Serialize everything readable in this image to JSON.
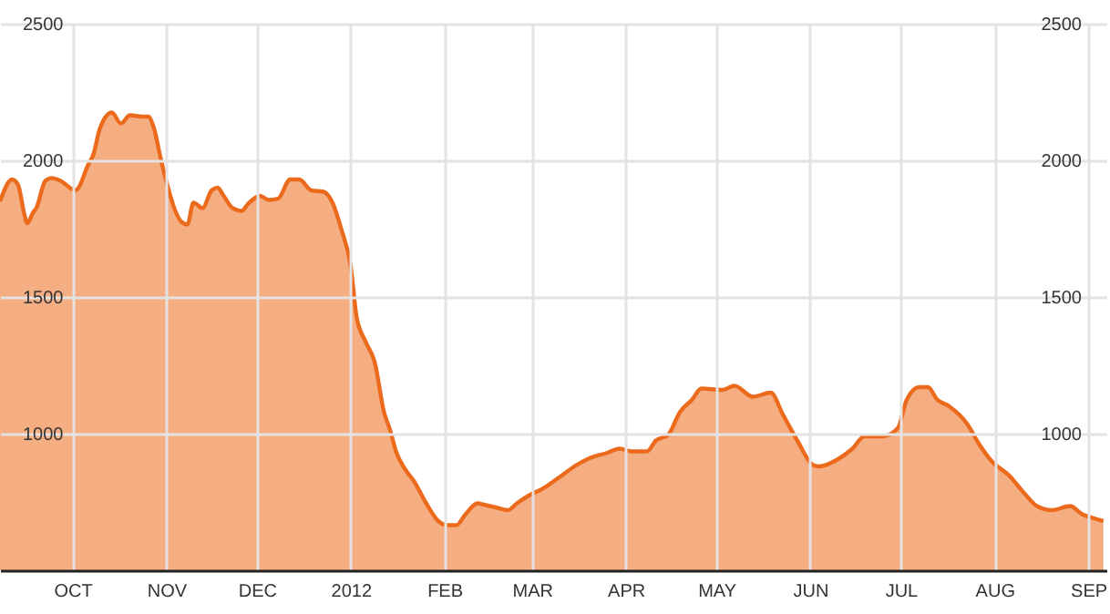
{
  "chart_data": {
    "type": "area",
    "x": [
      "2011-09-07",
      "2011-09-11",
      "2011-09-13",
      "2011-09-15",
      "2011-09-16",
      "2011-09-18",
      "2011-09-19",
      "2011-09-22",
      "2011-09-24",
      "2011-09-27",
      "2011-10-02",
      "2011-10-03",
      "2011-10-06",
      "2011-10-08",
      "2011-10-10",
      "2011-10-14",
      "2011-10-17",
      "2011-10-20",
      "2011-10-24",
      "2011-10-26",
      "2011-10-28",
      "2011-10-30",
      "2011-11-01",
      "2011-11-04",
      "2011-11-06",
      "2011-11-08",
      "2011-11-10",
      "2011-11-13",
      "2011-11-16",
      "2011-11-18",
      "2011-11-20",
      "2011-11-23",
      "2011-11-26",
      "2011-11-28",
      "2011-12-02",
      "2011-12-05",
      "2011-12-08",
      "2011-12-12",
      "2011-12-15",
      "2011-12-19",
      "2011-12-23",
      "2011-12-26",
      "2011-12-29",
      "2012-01-01",
      "2012-01-03",
      "2012-01-06",
      "2012-01-09",
      "2012-01-12",
      "2012-01-14",
      "2012-01-16",
      "2012-01-19",
      "2012-01-22",
      "2012-01-26",
      "2012-01-30",
      "2012-02-02",
      "2012-02-05",
      "2012-02-08",
      "2012-02-12",
      "2012-02-14",
      "2012-02-18",
      "2012-02-22",
      "2012-02-25",
      "2012-03-01",
      "2012-03-04",
      "2012-03-10",
      "2012-03-15",
      "2012-03-20",
      "2012-03-26",
      "2012-03-30",
      "2012-04-03",
      "2012-04-08",
      "2012-04-11",
      "2012-04-15",
      "2012-04-19",
      "2012-04-23",
      "2012-04-26",
      "2012-05-03",
      "2012-05-07",
      "2012-05-13",
      "2012-05-19",
      "2012-05-23",
      "2012-05-28",
      "2012-06-02",
      "2012-06-04",
      "2012-06-10",
      "2012-06-15",
      "2012-06-19",
      "2012-06-25",
      "2012-06-30",
      "2012-07-03",
      "2012-07-07",
      "2012-07-10",
      "2012-07-13",
      "2012-07-17",
      "2012-07-23",
      "2012-07-27",
      "2012-07-31",
      "2012-08-06",
      "2012-08-11",
      "2012-08-15",
      "2012-08-20",
      "2012-08-26",
      "2012-08-30",
      "2012-09-03",
      "2012-09-06"
    ],
    "series": [
      {
        "color": "#ec6a1c",
        "values": [
          1850,
          1930,
          1910,
          1805,
          1770,
          1810,
          1825,
          1925,
          1935,
          1925,
          1890,
          1900,
          1980,
          2025,
          2115,
          2175,
          2135,
          2165,
          2160,
          2160,
          2115,
          2015,
          1925,
          1815,
          1775,
          1765,
          1845,
          1825,
          1890,
          1900,
          1870,
          1825,
          1815,
          1840,
          1870,
          1855,
          1860,
          1930,
          1930,
          1890,
          1885,
          1845,
          1745,
          1615,
          1425,
          1335,
          1260,
          1080,
          1015,
          935,
          870,
          825,
          745,
          680,
          665,
          665,
          705,
          745,
          740,
          730,
          720,
          745,
          780,
          795,
          840,
          880,
          910,
          930,
          945,
          935,
          935,
          975,
          995,
          1080,
          1125,
          1165,
          1160,
          1175,
          1135,
          1150,
          1070,
          970,
          885,
          880,
          905,
          945,
          990,
          990,
          1020,
          1125,
          1170,
          1170,
          1125,
          1100,
          1035,
          960,
          900,
          845,
          780,
          735,
          720,
          735,
          705,
          690,
          680
        ]
      }
    ],
    "xlim": [
      "2011-09-07",
      "2012-09-07"
    ],
    "xticks": [
      {
        "value": "2011-10-01",
        "label": "OCT"
      },
      {
        "value": "2011-11-01",
        "label": "NOV"
      },
      {
        "value": "2011-12-01",
        "label": "DEC"
      },
      {
        "value": "2012-01-01",
        "label": "2012"
      },
      {
        "value": "2012-02-01",
        "label": "FEB"
      },
      {
        "value": "2012-03-01",
        "label": "MAR"
      },
      {
        "value": "2012-04-01",
        "label": "APR"
      },
      {
        "value": "2012-05-01",
        "label": "MAY"
      },
      {
        "value": "2012-06-01",
        "label": "JUN"
      },
      {
        "value": "2012-07-01",
        "label": "JUL"
      },
      {
        "value": "2012-08-01",
        "label": "AUG"
      },
      {
        "value": "2012-09-01",
        "label": "SEP"
      }
    ],
    "ylim": [
      500,
      2500
    ],
    "yticks": [
      1000,
      1500,
      2000,
      2500
    ],
    "y2lim": [
      500,
      2500
    ],
    "y2ticks": [
      1000,
      1500,
      2000,
      2500
    ],
    "grid": true
  }
}
